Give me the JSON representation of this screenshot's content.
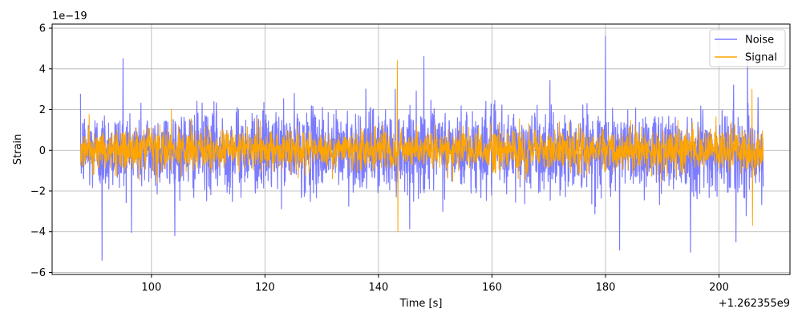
{
  "chart_data": {
    "type": "line",
    "title": "",
    "xlabel": "Time [s]",
    "ylabel": "Strain",
    "x_offset_label": "+1.262355e9",
    "y_scale_label": "1e−19",
    "xlim": [
      82.5,
      212.5
    ],
    "ylim": [
      -6.1,
      6.2
    ],
    "x_ticks": [
      100,
      120,
      140,
      160,
      180,
      200
    ],
    "y_ticks": [
      -6,
      -4,
      -2,
      0,
      2,
      4,
      6
    ],
    "x_tick_labels": [
      "100",
      "120",
      "140",
      "160",
      "180",
      "200"
    ],
    "y_tick_labels": [
      "−6",
      "−4",
      "−2",
      "0",
      "2",
      "4",
      "6"
    ],
    "grid": true,
    "legend_position": "top-right",
    "series": [
      {
        "name": "Noise",
        "color": "#7b7bff",
        "x_range": [
          87.5,
          207.8
        ],
        "amplitude": 2.0,
        "peaks": [
          {
            "x": 91.3,
            "y": -5.4
          },
          {
            "x": 180.0,
            "y": 5.6
          },
          {
            "x": 182.5,
            "y": -4.9
          },
          {
            "x": 195.0,
            "y": -5.0
          },
          {
            "x": 205.0,
            "y": 4.8
          },
          {
            "x": 203.0,
            "y": -4.5
          },
          {
            "x": 95.0,
            "y": 4.5
          },
          {
            "x": 148.0,
            "y": 4.6
          }
        ]
      },
      {
        "name": "Signal",
        "color": "#ffa500",
        "x_range": [
          87.5,
          207.8
        ],
        "amplitude": 1.0,
        "peaks": [
          {
            "x": 143.3,
            "y": 4.4
          },
          {
            "x": 143.4,
            "y": -4.0
          },
          {
            "x": 205.8,
            "y": 3.0
          },
          {
            "x": 205.9,
            "y": -3.7
          }
        ]
      }
    ]
  }
}
